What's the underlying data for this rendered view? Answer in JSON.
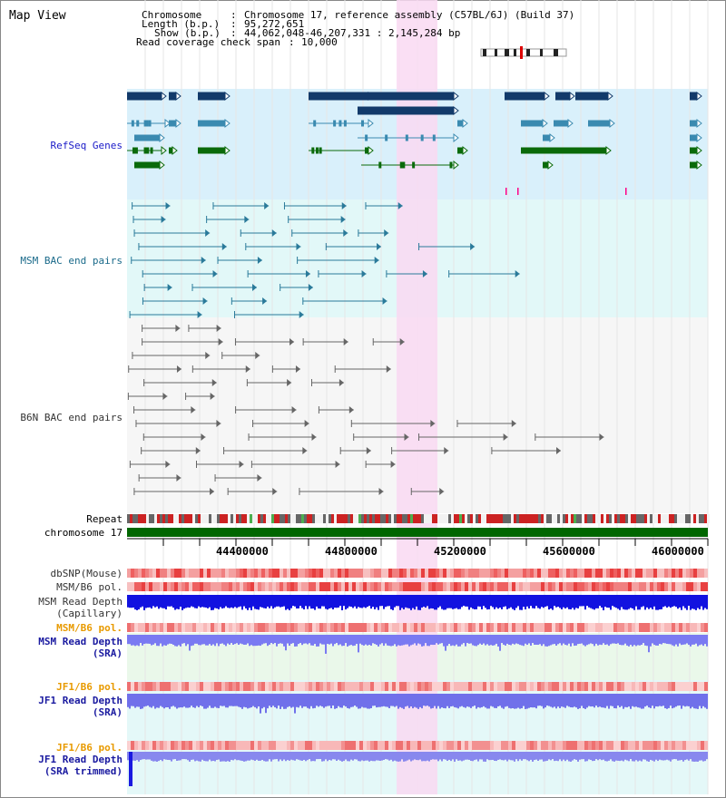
{
  "header": {
    "title": "Map View"
  },
  "info": {
    "chromosome_key": "Chromosome",
    "chromosome_val": "Chromosome 17, reference assembly (C57BL/6J) (Build 37)",
    "length_key": "Length (b.p.)",
    "length_val": "95,272,651",
    "show_key": "Show (b.p.)",
    "show_val": "44,062,048-46,207,331 : 2,145,284 bp",
    "span_key": "Read coverage check span",
    "span_val": "10,000"
  },
  "tracks": {
    "refseq": "RefSeq Genes",
    "msm_bac": "MSM BAC end pairs",
    "b6n_bac": "B6N BAC end pairs",
    "repeat": "Repeat",
    "chrom": "chromosome 17",
    "dbsnp": "dbSNP(Mouse)",
    "msm_b6_pol_1": "MSM/B6 pol.",
    "msm_rd_cap_1": "MSM Read Depth",
    "msm_rd_cap_2": "(Capillary)",
    "msm_b6_pol_2": "MSM/B6 pol.",
    "msm_rd_sra_1": "MSM Read Depth",
    "msm_rd_sra_2": "(SRA)",
    "jf1_b6_pol_1": "JF1/B6 pol.",
    "jf1_rd_sra_1": "JF1 Read Depth",
    "jf1_rd_sra_2": "(SRA)",
    "jf1_b6_pol_2": "JF1/B6 pol.",
    "jf1_rd_trim_1": "JF1 Read Depth",
    "jf1_rd_trim_2": "(SRA trimmed)"
  },
  "axis": {
    "ticks": [
      "44400000",
      "44800000",
      "45200000",
      "45600000",
      "46000000"
    ]
  },
  "colors": {
    "highlight": "#f9d9f2",
    "refseq_bg": "#d9f0fb",
    "refseq_label": "#1a1ac8",
    "msm_label": "#1a6a8a",
    "b6n_label": "#333333",
    "orange_label": "#e89a00",
    "blue_label": "#1a1aa0",
    "chrom_bar": "#006600"
  }
}
